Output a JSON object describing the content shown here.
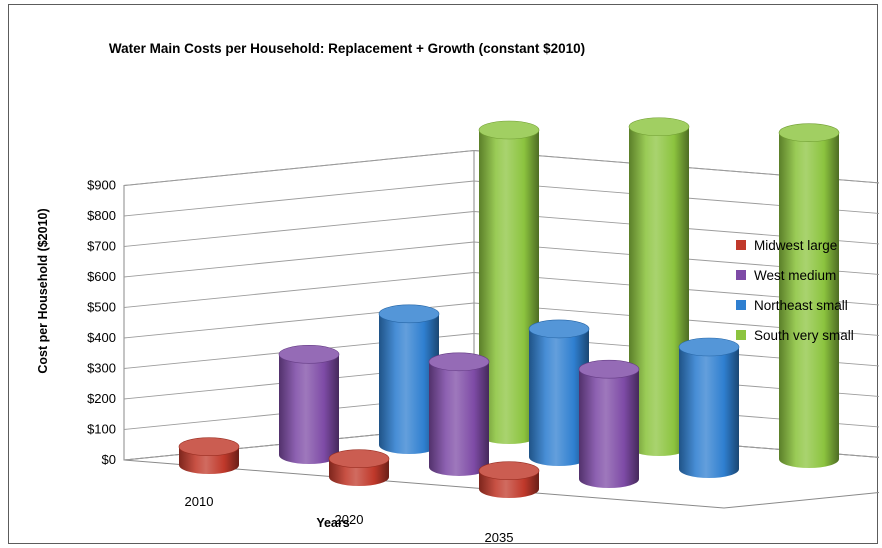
{
  "chart_data": {
    "type": "bar",
    "style": "3d-cylinder",
    "title": "Water Main Costs per Household:  Replacement + Growth (constant $2010)",
    "xlabel": "Years",
    "ylabel": "Cost per Household ($2010)",
    "categories": [
      "2010",
      "2020",
      "2035"
    ],
    "y_ticks": [
      "$0",
      "$100",
      "$200",
      "$300",
      "$400",
      "$500",
      "$600",
      "$700",
      "$800",
      "$900"
    ],
    "ylim": [
      0,
      900
    ],
    "grid": true,
    "legend_position": "right",
    "series": [
      {
        "name": "Midwest large",
        "color": "#c0392b",
        "values": [
          60,
          60,
          60
        ]
      },
      {
        "name": "West medium",
        "color": "#7e4ba6",
        "values": [
          330,
          345,
          360
        ]
      },
      {
        "name": "Northeast small",
        "color": "#2f7fd0",
        "values": [
          430,
          420,
          400
        ]
      },
      {
        "name": "South very small",
        "color": "#8cc43f",
        "values": [
          1000,
          1050,
          1070
        ]
      }
    ]
  }
}
